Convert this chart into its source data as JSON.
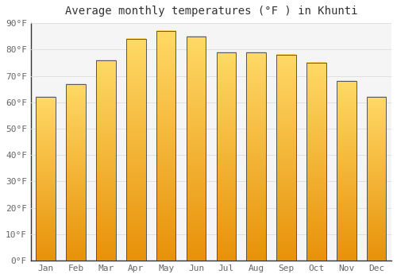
{
  "title": "Average monthly temperatures (°F ) in Khunti",
  "months": [
    "Jan",
    "Feb",
    "Mar",
    "Apr",
    "May",
    "Jun",
    "Jul",
    "Aug",
    "Sep",
    "Oct",
    "Nov",
    "Dec"
  ],
  "values": [
    62,
    67,
    76,
    84,
    87,
    85,
    79,
    79,
    78,
    75,
    68,
    62
  ],
  "bar_color_top": "#FFD966",
  "bar_color_bottom": "#E8920A",
  "bar_edge_color": "#555555",
  "background_color": "#FFFFFF",
  "plot_bg_color": "#F5F5F5",
  "grid_color": "#DDDDDD",
  "ylim": [
    0,
    90
  ],
  "yticks": [
    0,
    10,
    20,
    30,
    40,
    50,
    60,
    70,
    80,
    90
  ],
  "ytick_labels": [
    "0°F",
    "10°F",
    "20°F",
    "30°F",
    "40°F",
    "50°F",
    "60°F",
    "70°F",
    "80°F",
    "90°F"
  ],
  "title_fontsize": 10,
  "tick_fontsize": 8,
  "figsize": [
    5.0,
    3.5
  ],
  "dpi": 100,
  "bar_width": 0.65
}
